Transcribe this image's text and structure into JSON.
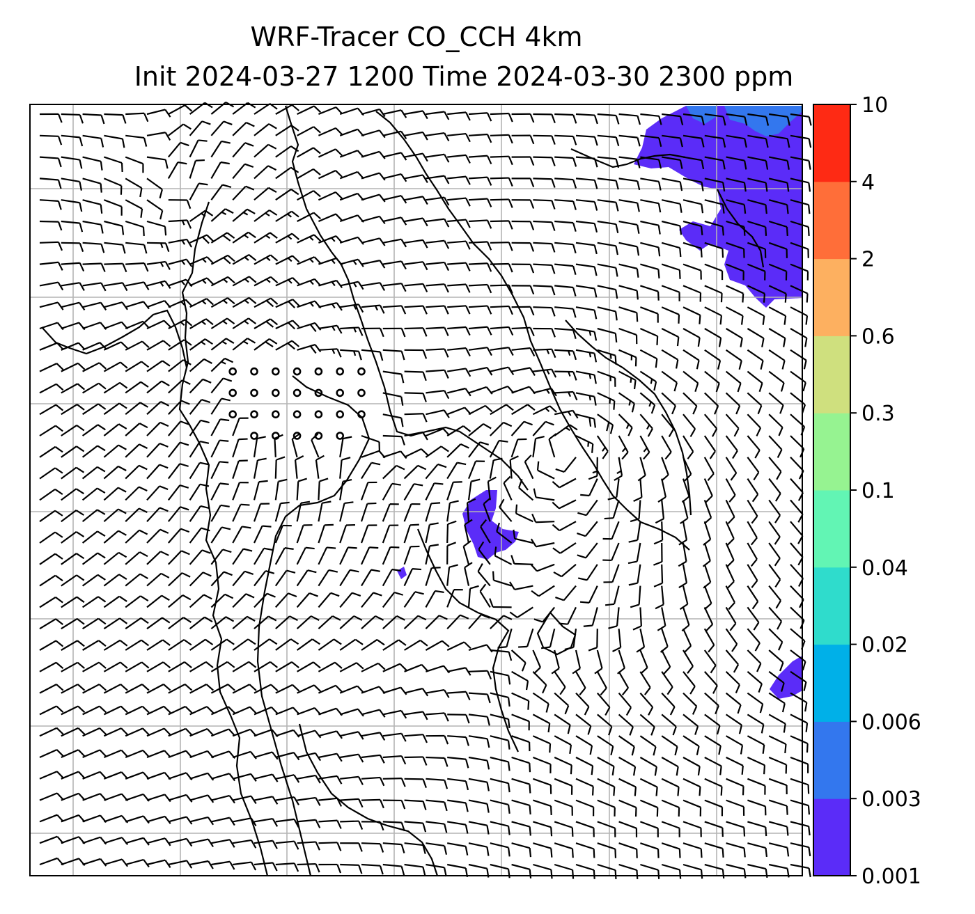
{
  "title": {
    "line1": "WRF-Tracer CO_CCH 4km",
    "line2": "Init 2024-03-27 1200 Time 2024-03-30 2300 ppm"
  },
  "colorbar": {
    "levels": [
      "0.001",
      "0.003",
      "0.006",
      "0.02",
      "0.04",
      "0.1",
      "0.3",
      "0.6",
      "2",
      "4",
      "10"
    ],
    "colors": [
      "#5b2cf8",
      "#3377ee",
      "#00b0e8",
      "#2fdccc",
      "#62f5b4",
      "#96f391",
      "#cfe07e",
      "#fdb060",
      "#ff6e39",
      "#fe2a14"
    ]
  },
  "map": {
    "background": "#ffffff",
    "gridline_color": "#b4b4b4",
    "coastline_color": "#000000",
    "calm_marker": "circle",
    "barb_color": "#000000"
  }
}
